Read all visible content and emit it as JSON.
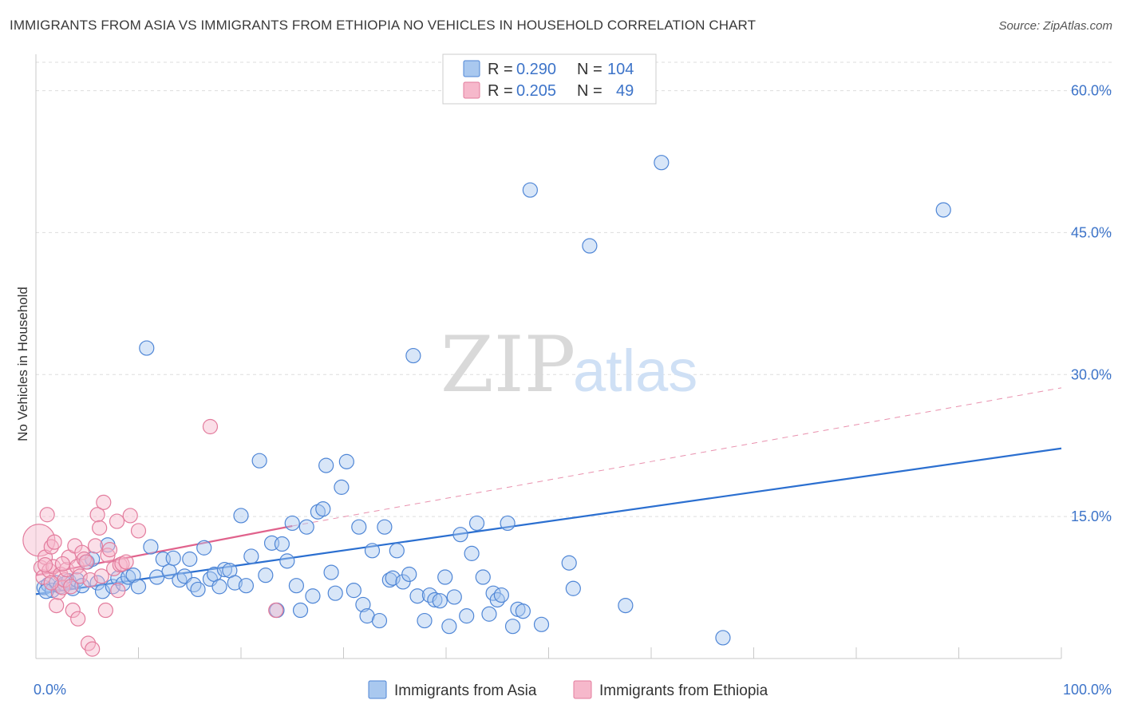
{
  "title": "IMMIGRANTS FROM ASIA VS IMMIGRANTS FROM ETHIOPIA NO VEHICLES IN HOUSEHOLD CORRELATION CHART",
  "source": "Source: ZipAtlas.com",
  "watermark": {
    "zip": "ZIP",
    "atlas": "atlas"
  },
  "colors": {
    "asia_fill": "#a9c8ef",
    "asia_stroke": "#4f86d6",
    "asia_line": "#2b6fd0",
    "ethiopia_fill": "#f6b8cb",
    "ethiopia_stroke": "#e37c9d",
    "ethiopia_line": "#e0628c",
    "tick_text": "#3d74c9",
    "grid": "#dddddd"
  },
  "chart_data": {
    "type": "scatter",
    "xlabel": "",
    "ylabel": "No Vehicles in Household",
    "xlim": [
      0,
      100
    ],
    "ylim": [
      0,
      63
    ],
    "x_tick_labels": [
      {
        "value": 0,
        "label": "0.0%"
      },
      {
        "value": 100,
        "label": "100.0%"
      }
    ],
    "y_tick_labels": [
      {
        "value": 15,
        "label": "15.0%"
      },
      {
        "value": 30,
        "label": "30.0%"
      },
      {
        "value": 45,
        "label": "45.0%"
      },
      {
        "value": 60,
        "label": "60.0%"
      }
    ],
    "legend": [
      {
        "r_label": "R =",
        "r_value": "0.290",
        "n_label": "N =",
        "n_value": "104"
      },
      {
        "r_label": "R =",
        "r_value": "0.205",
        "n_label": "N =",
        "n_value": "49"
      }
    ],
    "legend_placement": "top-center",
    "grid": true,
    "series": [
      {
        "name": "Immigrants from Asia",
        "trend": {
          "x": [
            0,
            100
          ],
          "y": [
            6.8,
            22.2
          ],
          "dashed_extension": false
        },
        "points": [
          [
            0.8,
            7.5
          ],
          [
            1.2,
            7.8
          ],
          [
            1.6,
            7.2
          ],
          [
            2.0,
            8.0
          ],
          [
            2.4,
            7.6
          ],
          [
            2.8,
            7.9
          ],
          [
            3.2,
            8.2
          ],
          [
            3.6,
            7.4
          ],
          [
            4.0,
            8.3
          ],
          [
            4.5,
            7.7
          ],
          [
            5.0,
            10.2
          ],
          [
            5.5,
            10.5
          ],
          [
            6.0,
            8.0
          ],
          [
            6.5,
            7.1
          ],
          [
            7.0,
            12.0
          ],
          [
            7.5,
            7.6
          ],
          [
            8.0,
            8.5
          ],
          [
            8.5,
            7.9
          ],
          [
            9.0,
            8.6
          ],
          [
            9.5,
            8.8
          ],
          [
            10.0,
            7.6
          ],
          [
            10.8,
            32.8
          ],
          [
            11.2,
            11.8
          ],
          [
            11.8,
            8.6
          ],
          [
            12.4,
            10.5
          ],
          [
            13.0,
            9.2
          ],
          [
            13.4,
            10.6
          ],
          [
            14.0,
            8.3
          ],
          [
            14.5,
            8.7
          ],
          [
            15.0,
            10.5
          ],
          [
            15.4,
            7.8
          ],
          [
            15.8,
            7.3
          ],
          [
            16.4,
            11.7
          ],
          [
            17.0,
            8.4
          ],
          [
            17.4,
            8.9
          ],
          [
            17.9,
            7.6
          ],
          [
            18.4,
            9.4
          ],
          [
            18.9,
            9.3
          ],
          [
            19.4,
            8.0
          ],
          [
            20.0,
            15.1
          ],
          [
            20.5,
            7.7
          ],
          [
            21.0,
            10.8
          ],
          [
            21.8,
            20.9
          ],
          [
            22.4,
            8.8
          ],
          [
            23.0,
            12.2
          ],
          [
            23.5,
            5.1
          ],
          [
            24.0,
            12.1
          ],
          [
            24.5,
            10.3
          ],
          [
            25.0,
            14.3
          ],
          [
            25.4,
            7.7
          ],
          [
            25.8,
            5.1
          ],
          [
            26.4,
            13.9
          ],
          [
            27.0,
            6.6
          ],
          [
            27.5,
            15.5
          ],
          [
            28.0,
            15.8
          ],
          [
            28.3,
            20.4
          ],
          [
            28.8,
            9.1
          ],
          [
            29.2,
            6.9
          ],
          [
            29.8,
            18.1
          ],
          [
            30.3,
            20.8
          ],
          [
            31.0,
            7.2
          ],
          [
            31.5,
            13.9
          ],
          [
            31.9,
            5.7
          ],
          [
            32.3,
            4.5
          ],
          [
            32.8,
            11.4
          ],
          [
            33.5,
            4.0
          ],
          [
            34.0,
            13.9
          ],
          [
            34.5,
            8.3
          ],
          [
            34.8,
            8.5
          ],
          [
            35.2,
            11.4
          ],
          [
            35.8,
            8.1
          ],
          [
            36.4,
            8.9
          ],
          [
            36.8,
            32.0
          ],
          [
            37.2,
            6.6
          ],
          [
            37.9,
            4.0
          ],
          [
            38.4,
            6.7
          ],
          [
            38.9,
            6.2
          ],
          [
            39.4,
            6.1
          ],
          [
            39.9,
            8.6
          ],
          [
            40.3,
            3.4
          ],
          [
            40.8,
            6.5
          ],
          [
            41.4,
            13.1
          ],
          [
            42.0,
            4.5
          ],
          [
            42.5,
            11.1
          ],
          [
            43.0,
            14.3
          ],
          [
            43.6,
            8.6
          ],
          [
            44.2,
            4.7
          ],
          [
            44.6,
            6.9
          ],
          [
            45.0,
            6.2
          ],
          [
            45.4,
            6.7
          ],
          [
            46.0,
            14.3
          ],
          [
            46.5,
            3.4
          ],
          [
            47.0,
            5.2
          ],
          [
            47.5,
            5.0
          ],
          [
            48.2,
            49.5
          ],
          [
            49.3,
            3.6
          ],
          [
            52.0,
            10.1
          ],
          [
            52.4,
            7.4
          ],
          [
            54.0,
            43.6
          ],
          [
            57.5,
            5.6
          ],
          [
            61.0,
            52.4
          ],
          [
            67.0,
            2.2
          ],
          [
            88.5,
            47.4
          ],
          [
            1.0,
            7.1
          ]
        ]
      },
      {
        "name": "Immigrants from Ethiopia",
        "trend": {
          "x": [
            0,
            25
          ],
          "y": [
            8.8,
            14.0
          ],
          "dashed_extension": true,
          "dashed_to": [
            100,
            28.6
          ]
        },
        "points": [
          [
            0.3,
            12.5
          ],
          [
            0.5,
            9.6
          ],
          [
            0.7,
            8.6
          ],
          [
            0.9,
            10.7
          ],
          [
            1.1,
            15.2
          ],
          [
            1.3,
            9.3
          ],
          [
            1.5,
            11.8
          ],
          [
            1.7,
            9.7
          ],
          [
            1.8,
            12.3
          ],
          [
            2.0,
            5.6
          ],
          [
            2.2,
            7.0
          ],
          [
            2.4,
            8.9
          ],
          [
            2.6,
            7.5
          ],
          [
            2.8,
            8.3
          ],
          [
            3.0,
            9.4
          ],
          [
            3.2,
            10.7
          ],
          [
            3.4,
            7.6
          ],
          [
            3.6,
            5.1
          ],
          [
            3.8,
            11.9
          ],
          [
            4.0,
            9.7
          ],
          [
            4.1,
            4.2
          ],
          [
            4.3,
            8.7
          ],
          [
            4.5,
            11.2
          ],
          [
            4.7,
            10.5
          ],
          [
            4.9,
            10.2
          ],
          [
            5.1,
            1.6
          ],
          [
            5.3,
            8.3
          ],
          [
            5.5,
            1.0
          ],
          [
            5.8,
            11.9
          ],
          [
            6.0,
            15.2
          ],
          [
            6.2,
            13.8
          ],
          [
            6.4,
            8.7
          ],
          [
            6.6,
            16.5
          ],
          [
            6.8,
            5.1
          ],
          [
            7.0,
            10.9
          ],
          [
            7.2,
            11.5
          ],
          [
            7.6,
            9.5
          ],
          [
            7.9,
            14.5
          ],
          [
            8.0,
            7.2
          ],
          [
            8.2,
            9.9
          ],
          [
            8.4,
            10.0
          ],
          [
            8.8,
            10.2
          ],
          [
            9.2,
            15.1
          ],
          [
            10.0,
            13.5
          ],
          [
            17.0,
            24.5
          ],
          [
            23.4,
            5.1
          ],
          [
            0.9,
            9.9
          ],
          [
            1.5,
            8.0
          ],
          [
            2.6,
            10.0
          ]
        ]
      }
    ]
  },
  "bottom_legend": [
    {
      "label": "Immigrants from Asia"
    },
    {
      "label": "Immigrants from Ethiopia"
    }
  ]
}
